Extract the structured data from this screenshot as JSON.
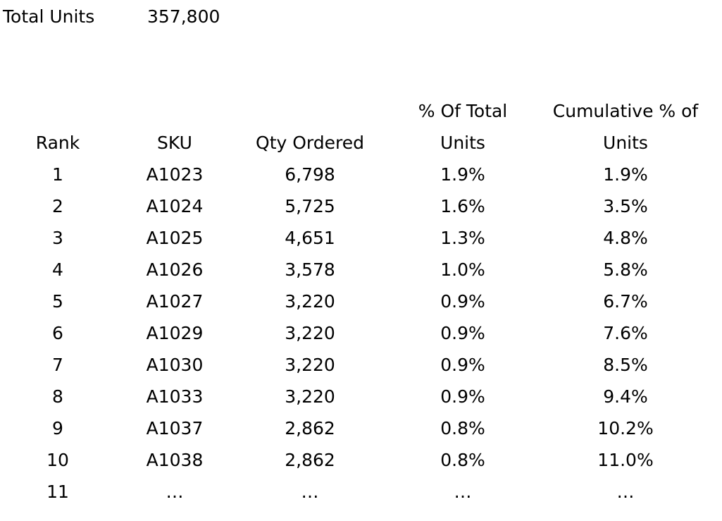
{
  "summary": {
    "total_label": "Total Units",
    "total_value": "357,800"
  },
  "table": {
    "headers": {
      "rank": "Rank",
      "sku": "SKU",
      "qty": "Qty Ordered",
      "pct_line1": "% Of Total",
      "pct_line2": "Units",
      "cum_line1": "Cumulative % of",
      "cum_line2": "Units"
    },
    "rows": [
      {
        "rank": "1",
        "sku": "A1023",
        "qty": "6,798",
        "pct": "1.9%",
        "cum": "1.9%"
      },
      {
        "rank": "2",
        "sku": "A1024",
        "qty": "5,725",
        "pct": "1.6%",
        "cum": "3.5%"
      },
      {
        "rank": "3",
        "sku": "A1025",
        "qty": "4,651",
        "pct": "1.3%",
        "cum": "4.8%"
      },
      {
        "rank": "4",
        "sku": "A1026",
        "qty": "3,578",
        "pct": "1.0%",
        "cum": "5.8%"
      },
      {
        "rank": "5",
        "sku": "A1027",
        "qty": "3,220",
        "pct": "0.9%",
        "cum": "6.7%"
      },
      {
        "rank": "6",
        "sku": "A1029",
        "qty": "3,220",
        "pct": "0.9%",
        "cum": "7.6%"
      },
      {
        "rank": "7",
        "sku": "A1030",
        "qty": "3,220",
        "pct": "0.9%",
        "cum": "8.5%"
      },
      {
        "rank": "8",
        "sku": "A1033",
        "qty": "3,220",
        "pct": "0.9%",
        "cum": "9.4%"
      },
      {
        "rank": "9",
        "sku": "A1037",
        "qty": "2,862",
        "pct": "0.8%",
        "cum": "10.2%"
      },
      {
        "rank": "10",
        "sku": "A1038",
        "qty": "2,862",
        "pct": "0.8%",
        "cum": "11.0%"
      },
      {
        "rank": "11",
        "sku": "…",
        "qty": "…",
        "pct": "…",
        "cum": "…"
      }
    ]
  }
}
